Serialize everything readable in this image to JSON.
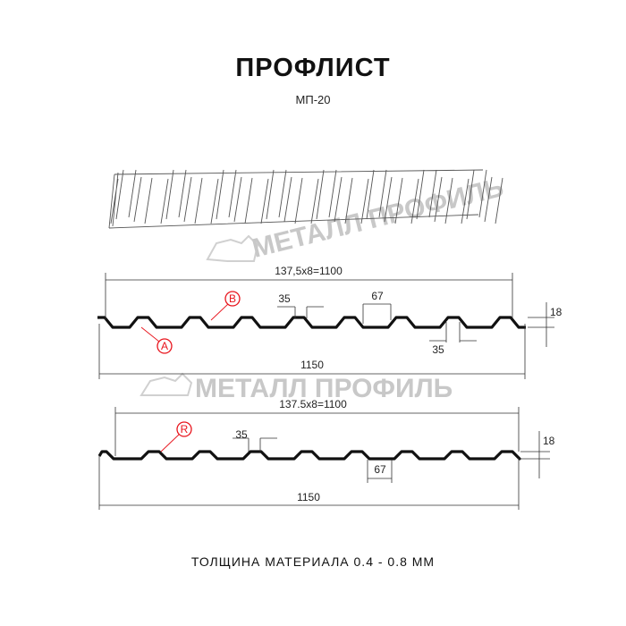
{
  "header": {
    "title": "ПРОФЛИСТ",
    "subtitle": "МП-20"
  },
  "watermark": "МЕТАЛЛ ПРОФИЛЬ",
  "profile_a": {
    "width_label": "137,5x8=1100",
    "total_label": "1150",
    "top_rib": "35",
    "rib_pitch": "67",
    "bottom_rib": "35",
    "height": "18",
    "marker_a": "A",
    "marker_b": "B"
  },
  "profile_r": {
    "width_label": "137.5x8=1100",
    "total_label": "1150",
    "top_rib": "35",
    "rib_pitch": "67",
    "height": "18",
    "marker_r": "R"
  },
  "footer": {
    "thickness": "ТОЛЩИНА МАТЕРИАЛА 0.4 - 0.8 ММ"
  },
  "colors": {
    "marker": "#e8141c",
    "line": "#111111",
    "watermark": "#c8c8c8"
  }
}
